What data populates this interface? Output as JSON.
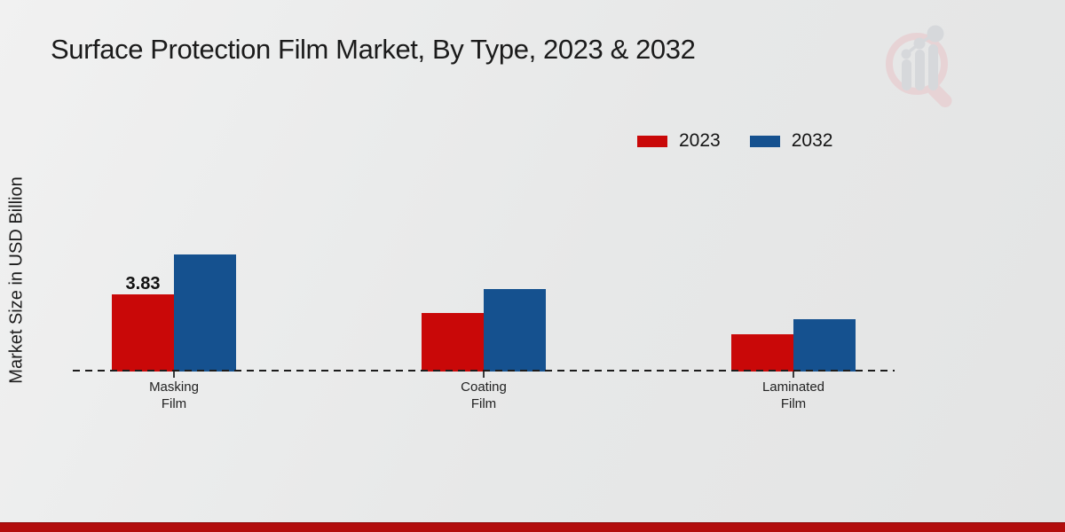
{
  "page_title": "Surface Protection Film Market, By Type, 2023 & 2032",
  "y_axis_label": "Market Size in USD Billion",
  "watermark_icon": "magnifier-bar-chart-logo",
  "colors": {
    "bar_2023": "#c90808",
    "bar_2032": "#15518f",
    "footer_band": "#b20d0d",
    "watermark_pink": "#e8d0d3",
    "watermark_gray": "#d4d6da"
  },
  "chart_data": {
    "type": "bar",
    "title": "Surface Protection Film Market, By Type, 2023 & 2032",
    "xlabel": "",
    "ylabel": "Market Size in USD Billion",
    "categories": [
      "Masking Film",
      "Coating Film",
      "Laminated Film"
    ],
    "category_label_lines": [
      [
        "Masking",
        "Film"
      ],
      [
        "Coating",
        "Film"
      ],
      [
        "Laminated",
        "Film"
      ]
    ],
    "series": [
      {
        "name": "2023",
        "color": "#c90808",
        "values": [
          3.83,
          2.9,
          1.85
        ]
      },
      {
        "name": "2032",
        "color": "#15518f",
        "values": [
          5.8,
          4.1,
          2.6
        ]
      }
    ],
    "value_labels": [
      {
        "series": "2023",
        "category": "Masking Film",
        "text": "3.83"
      }
    ],
    "ylim": [
      0,
      6.5
    ],
    "grid": false,
    "baseline_style": "dashed",
    "legend_position": "top-right"
  }
}
